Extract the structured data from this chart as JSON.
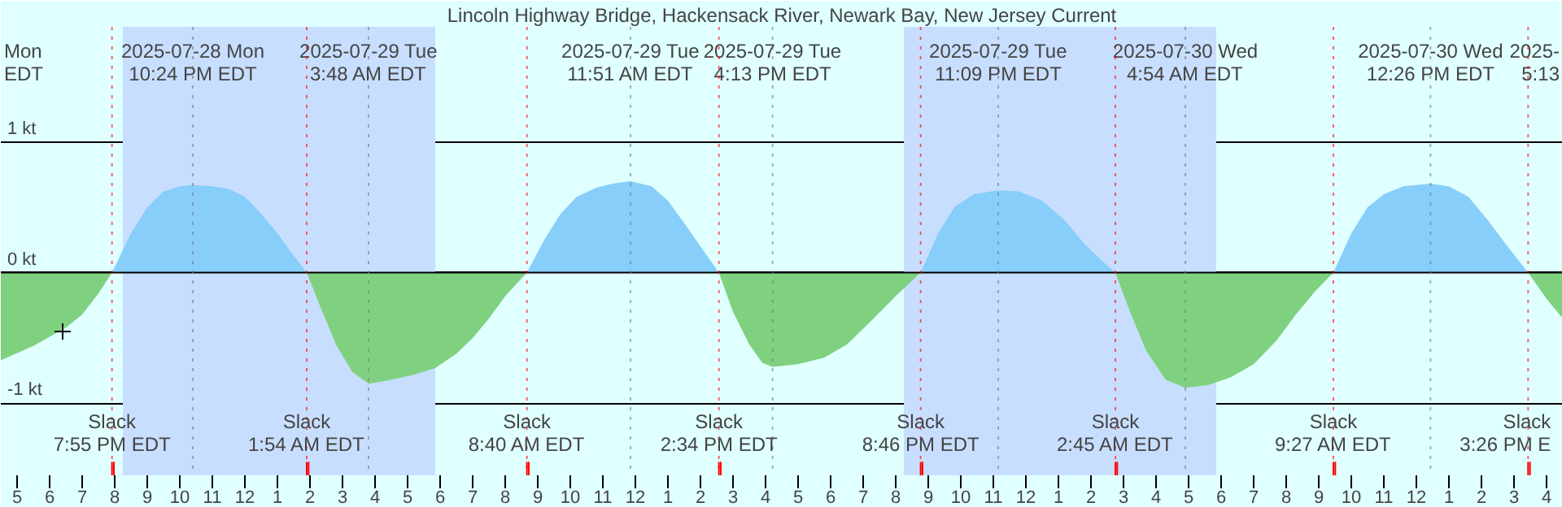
{
  "chart_data": {
    "type": "area",
    "title": "Lincoln Highway Bridge, Hackensack River, Newark Bay, New Jersey Current",
    "series": [
      {
        "color": "#87cefa",
        "x": [
          "2025-07-28T19:55",
          "2025-07-28T20:30",
          "2025-07-28T21:00",
          "2025-07-28T21:30",
          "2025-07-28T22:00",
          "2025-07-28T22:24",
          "2025-07-28T23:00",
          "2025-07-28T23:30",
          "2025-07-29T00:00",
          "2025-07-29T00:30",
          "2025-07-29T01:00",
          "2025-07-29T01:30",
          "2025-07-29T01:54",
          null,
          "2025-07-29T08:40",
          "2025-07-29T09:12",
          "2025-07-29T09:42",
          "2025-07-29T10:12",
          "2025-07-29T10:48",
          "2025-07-29T11:18",
          "2025-07-29T11:51",
          "2025-07-29T12:30",
          "2025-07-29T13:00",
          "2025-07-29T13:30",
          "2025-07-29T14:00",
          "2025-07-29T14:34",
          null,
          "2025-07-29T20:46",
          "2025-07-29T21:18",
          "2025-07-29T21:48",
          "2025-07-29T22:24",
          "2025-07-29T23:09",
          "2025-07-29T23:48",
          "2025-07-30T00:30",
          "2025-07-30T01:12",
          "2025-07-30T01:48",
          "2025-07-30T02:18",
          "2025-07-30T02:45",
          null,
          "2025-07-30T09:27",
          "2025-07-30T10:00",
          "2025-07-30T10:30",
          "2025-07-30T11:00",
          "2025-07-30T11:36",
          "2025-07-30T12:26",
          "2025-07-30T13:00",
          "2025-07-30T13:36",
          "2025-07-30T14:12",
          "2025-07-30T14:48",
          "2025-07-30T15:26"
        ],
        "values": [
          0,
          0.3,
          0.5,
          0.62,
          0.66,
          0.67,
          0.66,
          0.64,
          0.58,
          0.45,
          0.3,
          0.13,
          0,
          null,
          0,
          0.25,
          0.45,
          0.58,
          0.65,
          0.68,
          0.7,
          0.66,
          0.55,
          0.38,
          0.2,
          0,
          null,
          0,
          0.3,
          0.5,
          0.6,
          0.63,
          0.62,
          0.55,
          0.4,
          0.22,
          0.1,
          0,
          null,
          0,
          0.3,
          0.5,
          0.6,
          0.66,
          0.68,
          0.66,
          0.58,
          0.4,
          0.2,
          0
        ]
      },
      {
        "color": "#7fd17f",
        "x": [
          "2025-07-28T16:30",
          "2025-07-28T17:30",
          "2025-07-28T18:30",
          "2025-07-28T19:00",
          "2025-07-28T19:30",
          "2025-07-28T19:55",
          null,
          "2025-07-29T01:54",
          "2025-07-29T02:18",
          "2025-07-29T02:48",
          "2025-07-29T03:18",
          "2025-07-29T03:48",
          "2025-07-29T04:30",
          "2025-07-29T05:12",
          "2025-07-29T05:51",
          "2025-07-29T06:30",
          "2025-07-29T07:00",
          "2025-07-29T07:30",
          "2025-07-29T08:00",
          "2025-07-29T08:40",
          null,
          "2025-07-29T14:34",
          "2025-07-29T15:00",
          "2025-07-29T15:30",
          "2025-07-29T15:54",
          "2025-07-29T16:13",
          "2025-07-29T17:00",
          "2025-07-29T17:48",
          "2025-07-29T18:30",
          "2025-07-29T19:12",
          "2025-07-29T20:00",
          "2025-07-29T20:46",
          null,
          "2025-07-30T02:45",
          "2025-07-30T03:12",
          "2025-07-30T03:42",
          "2025-07-30T04:18",
          "2025-07-30T04:54",
          "2025-07-30T05:36",
          "2025-07-30T06:18",
          "2025-07-30T07:00",
          "2025-07-30T07:42",
          "2025-07-30T08:18",
          "2025-07-30T08:54",
          "2025-07-30T09:27",
          null,
          "2025-07-30T15:26",
          "2025-07-30T16:00",
          "2025-07-30T16:30"
        ],
        "values": [
          -0.67,
          -0.56,
          -0.42,
          -0.32,
          -0.16,
          0,
          null,
          0,
          -0.25,
          -0.55,
          -0.76,
          -0.85,
          -0.82,
          -0.78,
          -0.73,
          -0.62,
          -0.5,
          -0.35,
          -0.18,
          0,
          null,
          0,
          -0.3,
          -0.55,
          -0.69,
          -0.72,
          -0.7,
          -0.65,
          -0.55,
          -0.38,
          -0.18,
          0,
          null,
          0,
          -0.3,
          -0.6,
          -0.82,
          -0.88,
          -0.86,
          -0.8,
          -0.7,
          -0.52,
          -0.32,
          -0.14,
          0,
          null,
          0,
          -0.2,
          -0.35
        ]
      },
      {
        "type": "scatter",
        "marker": "cross",
        "color": "#000000",
        "x": [
          "2025-07-28T18:24"
        ],
        "values": [
          -0.45
        ]
      }
    ],
    "xlim": [
      "2025-07-28T16:30",
      "2025-07-30T16:30"
    ],
    "ylim": [
      -1.55,
      1.88
    ],
    "yticks": [
      {
        "value": -1,
        "label": "-1 kt"
      },
      {
        "value": 0,
        "label": "0 kt"
      },
      {
        "value": 1,
        "label": "1 kt"
      }
    ],
    "xticks": [
      {
        "value": "2025-07-28T17:00",
        "label": "5"
      },
      {
        "value": "2025-07-28T18:00",
        "label": "6"
      },
      {
        "value": "2025-07-28T19:00",
        "label": "7"
      },
      {
        "value": "2025-07-28T20:00",
        "label": "8"
      },
      {
        "value": "2025-07-28T21:00",
        "label": "9"
      },
      {
        "value": "2025-07-28T22:00",
        "label": "10"
      },
      {
        "value": "2025-07-28T23:00",
        "label": "11"
      },
      {
        "value": "2025-07-29T00:00",
        "label": "12"
      },
      {
        "value": "2025-07-29T01:00",
        "label": "1"
      },
      {
        "value": "2025-07-29T02:00",
        "label": "2"
      },
      {
        "value": "2025-07-29T03:00",
        "label": "3"
      },
      {
        "value": "2025-07-29T04:00",
        "label": "4"
      },
      {
        "value": "2025-07-29T05:00",
        "label": "5"
      },
      {
        "value": "2025-07-29T06:00",
        "label": "6"
      },
      {
        "value": "2025-07-29T07:00",
        "label": "7"
      },
      {
        "value": "2025-07-29T08:00",
        "label": "8"
      },
      {
        "value": "2025-07-29T09:00",
        "label": "9"
      },
      {
        "value": "2025-07-29T10:00",
        "label": "10"
      },
      {
        "value": "2025-07-29T11:00",
        "label": "11"
      },
      {
        "value": "2025-07-29T12:00",
        "label": "12"
      },
      {
        "value": "2025-07-29T13:00",
        "label": "1"
      },
      {
        "value": "2025-07-29T14:00",
        "label": "2"
      },
      {
        "value": "2025-07-29T15:00",
        "label": "3"
      },
      {
        "value": "2025-07-29T16:00",
        "label": "4"
      },
      {
        "value": "2025-07-29T17:00",
        "label": "5"
      },
      {
        "value": "2025-07-29T18:00",
        "label": "6"
      },
      {
        "value": "2025-07-29T19:00",
        "label": "7"
      },
      {
        "value": "2025-07-29T20:00",
        "label": "8"
      },
      {
        "value": "2025-07-29T21:00",
        "label": "9"
      },
      {
        "value": "2025-07-29T22:00",
        "label": "10"
      },
      {
        "value": "2025-07-29T23:00",
        "label": "11"
      },
      {
        "value": "2025-07-30T00:00",
        "label": "12"
      },
      {
        "value": "2025-07-30T01:00",
        "label": "1"
      },
      {
        "value": "2025-07-30T02:00",
        "label": "2"
      },
      {
        "value": "2025-07-30T03:00",
        "label": "3"
      },
      {
        "value": "2025-07-30T04:00",
        "label": "4"
      },
      {
        "value": "2025-07-30T05:00",
        "label": "5"
      },
      {
        "value": "2025-07-30T06:00",
        "label": "6"
      },
      {
        "value": "2025-07-30T07:00",
        "label": "7"
      },
      {
        "value": "2025-07-30T08:00",
        "label": "8"
      },
      {
        "value": "2025-07-30T09:00",
        "label": "9"
      },
      {
        "value": "2025-07-30T10:00",
        "label": "10"
      },
      {
        "value": "2025-07-30T11:00",
        "label": "11"
      },
      {
        "value": "2025-07-30T12:00",
        "label": "12"
      },
      {
        "value": "2025-07-30T13:00",
        "label": "1"
      },
      {
        "value": "2025-07-30T14:00",
        "label": "2"
      },
      {
        "value": "2025-07-30T15:00",
        "label": "3"
      },
      {
        "value": "2025-07-30T16:00",
        "label": "4"
      }
    ],
    "grid": "y",
    "bands": [
      {
        "axis": "x",
        "from": "2025-07-28T20:15",
        "to": "2025-07-29T05:51",
        "color": "#c8deff"
      },
      {
        "axis": "x",
        "from": "2025-07-29T20:15",
        "to": "2025-07-30T05:51",
        "color": "#c8deff"
      }
    ],
    "annotations": [
      "Mon\nEDT",
      "2025-\n5:13"
    ],
    "ref_lines": [
      {
        "axis": "x",
        "value": "2025-07-28T22:24",
        "label": "2025-07-28 Mon\n10:24 PM EDT"
      },
      {
        "axis": "x",
        "value": "2025-07-29T03:48",
        "label": "2025-07-29 Tue\n3:48 AM EDT"
      },
      {
        "axis": "x",
        "value": "2025-07-29T11:51",
        "label": "2025-07-29 Tue\n11:51 AM EDT"
      },
      {
        "axis": "x",
        "value": "2025-07-29T16:13",
        "label": "2025-07-29 Tue\n4:13 PM EDT"
      },
      {
        "axis": "x",
        "value": "2025-07-29T23:09",
        "label": "2025-07-29 Tue\n11:09 PM EDT"
      },
      {
        "axis": "x",
        "value": "2025-07-30T04:54",
        "label": "2025-07-30 Wed\n4:54 AM EDT"
      },
      {
        "axis": "x",
        "value": "2025-07-30T12:26",
        "label": "2025-07-30 Wed\n12:26 PM EDT"
      },
      {
        "axis": "x",
        "value": "2025-07-28T19:55",
        "label": "Slack\n7:55 PM EDT",
        "color": "#ff0000"
      },
      {
        "axis": "x",
        "value": "2025-07-29T01:54",
        "label": "Slack\n1:54 AM EDT",
        "color": "#ff0000"
      },
      {
        "axis": "x",
        "value": "2025-07-29T08:40",
        "label": "Slack\n8:40 AM EDT",
        "color": "#ff0000"
      },
      {
        "axis": "x",
        "value": "2025-07-29T14:34",
        "label": "Slack\n2:34 PM EDT",
        "color": "#ff0000"
      },
      {
        "axis": "x",
        "value": "2025-07-29T20:46",
        "label": "Slack\n8:46 PM EDT",
        "color": "#ff0000"
      },
      {
        "axis": "x",
        "value": "2025-07-30T02:45",
        "label": "Slack\n2:45 AM EDT",
        "color": "#ff0000"
      },
      {
        "axis": "x",
        "value": "2025-07-30T09:27",
        "label": "Slack\n9:27 AM EDT",
        "color": "#ff0000"
      },
      {
        "axis": "x",
        "value": "2025-07-30T15:26",
        "label": "Slack\n3:26 PM E",
        "color": "#ff0000"
      }
    ]
  }
}
